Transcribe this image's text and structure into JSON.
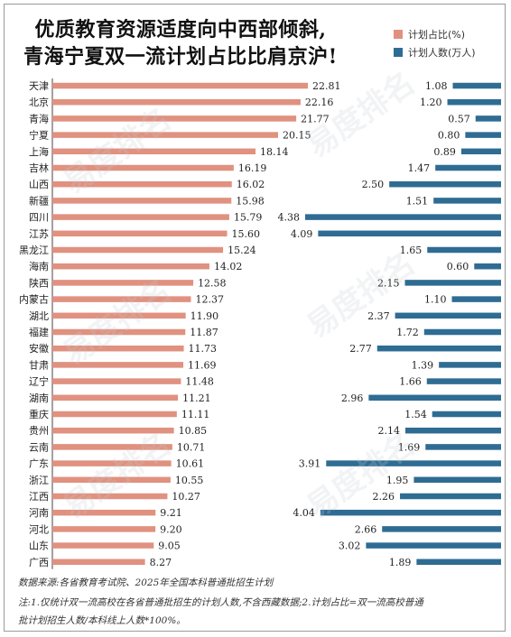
{
  "title_line1": "优质教育资源适度向中西部倾斜,",
  "title_line2": "青海宁夏双一流计划占比比肩京沪!",
  "watermark": "易度排名",
  "colors": {
    "ratio": "#e0917f",
    "count": "#2f6c93"
  },
  "chart_data": {
    "type": "bar",
    "categories": [
      "天津",
      "北京",
      "青海",
      "宁夏",
      "上海",
      "吉林",
      "山西",
      "新疆",
      "四川",
      "江苏",
      "黑龙江",
      "海南",
      "陕西",
      "内蒙古",
      "湖北",
      "福建",
      "安徽",
      "甘肃",
      "辽宁",
      "湖南",
      "重庆",
      "贵州",
      "云南",
      "广东",
      "浙江",
      "江西",
      "河南",
      "河北",
      "山东",
      "广西"
    ],
    "series": [
      {
        "name": "计划占比(%)",
        "values": [
          22.81,
          22.16,
          21.77,
          20.15,
          18.14,
          16.19,
          16.02,
          15.98,
          15.79,
          15.6,
          15.24,
          14.02,
          12.58,
          12.37,
          11.9,
          11.87,
          11.73,
          11.69,
          11.48,
          11.21,
          11.11,
          10.85,
          10.71,
          10.61,
          10.55,
          10.27,
          9.21,
          9.2,
          9.05,
          8.27
        ]
      },
      {
        "name": "计划人数(万人)",
        "values": [
          1.08,
          1.2,
          0.57,
          0.8,
          0.89,
          1.47,
          2.5,
          1.51,
          4.38,
          4.09,
          1.65,
          0.6,
          2.15,
          1.1,
          2.37,
          1.72,
          2.77,
          1.39,
          1.66,
          2.96,
          1.54,
          2.14,
          1.69,
          3.91,
          1.95,
          2.26,
          4.04,
          2.66,
          3.02,
          1.89
        ]
      }
    ],
    "legend_position": "top-right"
  },
  "footnote_source": "数据来源:各省教育考试院、2025年全国本科普通批招生计划",
  "footnote_note_line1": "注:1.仅统计双一流高校在各省普通批招生的计划人数,不含西藏数据;2.计划占比=双一流高校普通",
  "footnote_note_line2": "批计划招生人数/本科线上人数*100%。"
}
